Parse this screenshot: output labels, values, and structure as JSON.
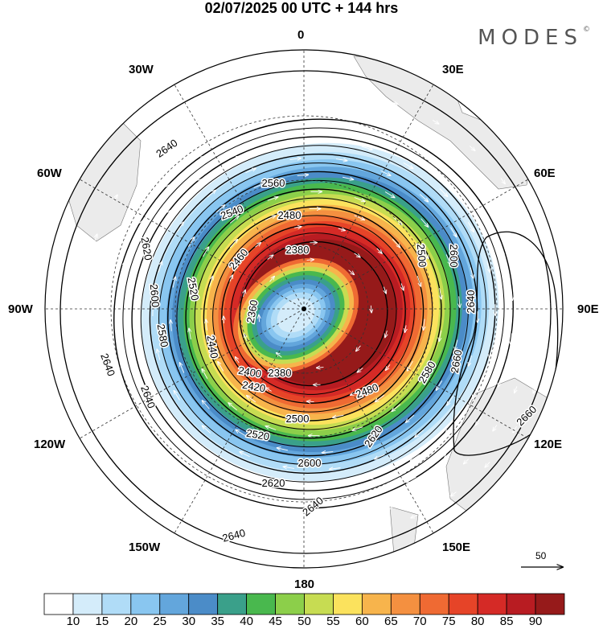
{
  "title": "02/07/2025  00 UTC  + 144 hrs",
  "brand": "MODES",
  "brand_mark": "©",
  "longitude_labels": [
    "0",
    "30E",
    "60E",
    "90E",
    "120E",
    "150E",
    "180",
    "150W",
    "120W",
    "90W",
    "60W",
    "30W"
  ],
  "contour_labels": [
    "2640",
    "2620",
    "2600",
    "2580",
    "2560",
    "2540",
    "2520",
    "2500",
    "2480",
    "2460",
    "2440",
    "2420",
    "2400",
    "2380",
    "2360",
    "2660"
  ],
  "reference_vector": {
    "label": "50"
  },
  "colorbar": {
    "colors": [
      "#ffffff",
      "#d4ecfa",
      "#b0dcf7",
      "#89c6f0",
      "#63a6dc",
      "#4b8cc8",
      "#3aa08a",
      "#49b84e",
      "#8ccf4a",
      "#c7dc52",
      "#fbe25d",
      "#f7b44c",
      "#f49040",
      "#ef6a33",
      "#e64428",
      "#d52a26",
      "#b81c22",
      "#961a1a"
    ],
    "labels": [
      "10",
      "15",
      "20",
      "25",
      "30",
      "35",
      "40",
      "45",
      "50",
      "55",
      "60",
      "65",
      "70",
      "75",
      "80",
      "85",
      "90"
    ]
  },
  "colors": {
    "land": "#e9e9e9",
    "contour": "#000000",
    "vectors": "#ffffff"
  }
}
